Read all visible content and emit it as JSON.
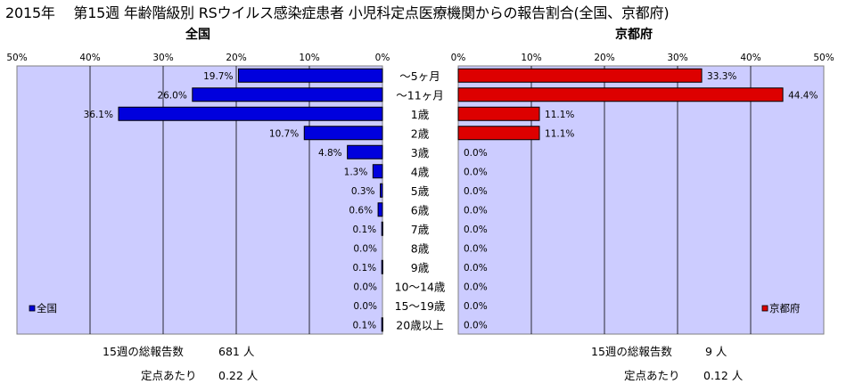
{
  "title": "2015年　 第15週 年齢階級別 RSウイルス感染症患者 小児科定点医療機関からの報告割合(全国、京都府)",
  "chart_data": [
    {
      "type": "bar",
      "orientation": "horizontal",
      "direction": "right-to-left",
      "title": "全国",
      "legend": "全国",
      "legend_position": "bottom-left",
      "color": "#0000dd",
      "xlim": [
        0,
        50
      ],
      "xticks": [
        "50%",
        "40%",
        "30%",
        "20%",
        "10%",
        "0%"
      ],
      "grid": true,
      "categories": [
        "～5ヶ月",
        "～11ヶ月",
        "1歳",
        "2歳",
        "3歳",
        "4歳",
        "5歳",
        "6歳",
        "7歳",
        "8歳",
        "9歳",
        "10～14歳",
        "15～19歳",
        "20歳以上"
      ],
      "values": [
        19.7,
        26.0,
        36.1,
        10.7,
        4.8,
        1.3,
        0.3,
        0.6,
        0.1,
        0.0,
        0.1,
        0.0,
        0.0,
        0.1
      ],
      "labels": [
        "19.7%",
        "26.0%",
        "36.1%",
        "10.7%",
        "4.8%",
        "1.3%",
        "0.3%",
        "0.6%",
        "0.1%",
        "0.0%",
        "0.1%",
        "0.0%",
        "0.0%",
        "0.1%"
      ]
    },
    {
      "type": "bar",
      "orientation": "horizontal",
      "direction": "left-to-right",
      "title": "京都府",
      "legend": "京都府",
      "legend_position": "bottom-right",
      "color": "#dd0000",
      "xlim": [
        0,
        50
      ],
      "xticks": [
        "0%",
        "10%",
        "20%",
        "30%",
        "40%",
        "50%"
      ],
      "grid": true,
      "categories": [
        "～5ヶ月",
        "～11ヶ月",
        "1歳",
        "2歳",
        "3歳",
        "4歳",
        "5歳",
        "6歳",
        "7歳",
        "8歳",
        "9歳",
        "10～14歳",
        "15～19歳",
        "20歳以上"
      ],
      "values": [
        33.3,
        44.4,
        11.1,
        11.1,
        0.0,
        0.0,
        0.0,
        0.0,
        0.0,
        0.0,
        0.0,
        0.0,
        0.0,
        0.0
      ],
      "labels": [
        "33.3%",
        "44.4%",
        "11.1%",
        "11.1%",
        "0.0%",
        "0.0%",
        "0.0%",
        "0.0%",
        "0.0%",
        "0.0%",
        "0.0%",
        "0.0%",
        "0.0%",
        "0.0%"
      ]
    }
  ],
  "footer": {
    "national": {
      "total_label": "15週の総報告数",
      "total_value": "681 人",
      "per_site_label": "定点あたり",
      "per_site_value": "0.22 人"
    },
    "kyoto": {
      "total_label": "15週の総報告数",
      "total_value": "9 人",
      "per_site_label": "定点あたり",
      "per_site_value": "0.12 人"
    }
  }
}
